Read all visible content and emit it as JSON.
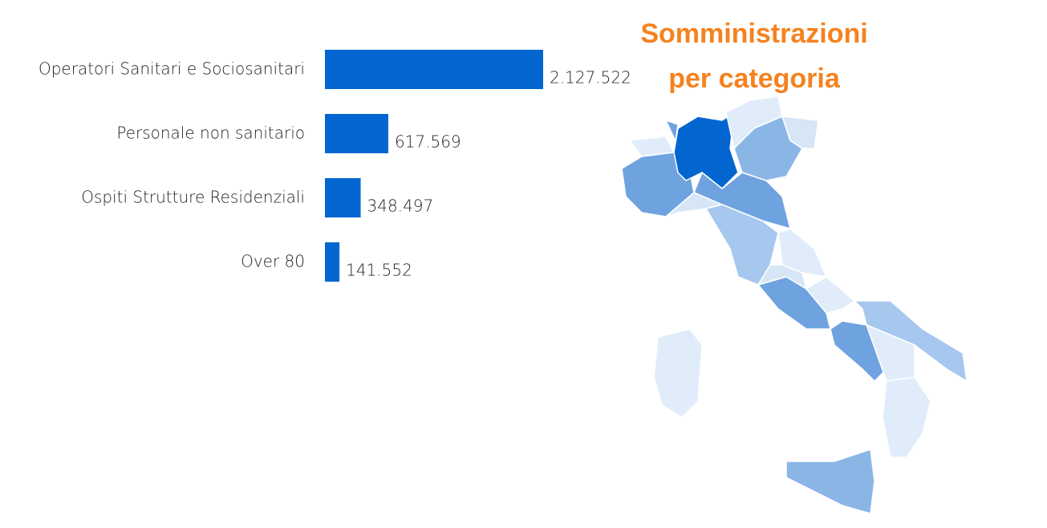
{
  "chart_data": {
    "type": "bar",
    "orientation": "horizontal",
    "title": "Somministrazioni per categoria",
    "categories": [
      "Operatori Sanitari e Sociosanitari",
      "Personale non sanitario",
      "Ospiti Strutture Residenziali",
      "Over 80"
    ],
    "values": [
      2127522,
      617569,
      348497,
      141552
    ],
    "value_labels": [
      "2.127.522",
      "617.569",
      "348.497",
      "141.552"
    ],
    "color": "#0366d0"
  }
}
